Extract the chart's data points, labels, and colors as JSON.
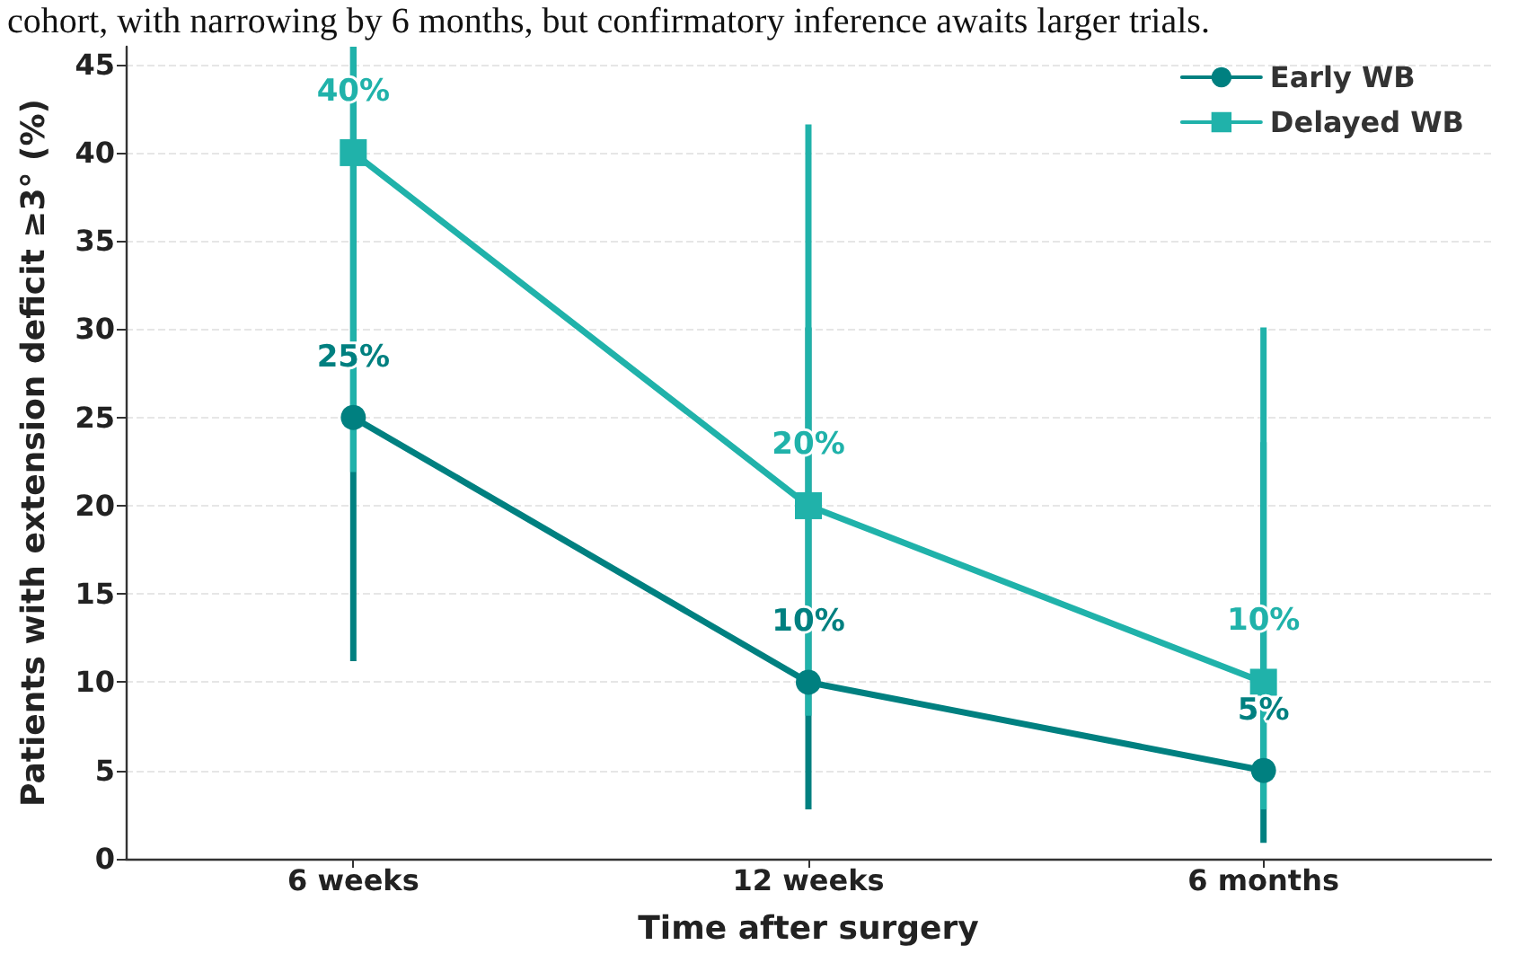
{
  "chart_data": {
    "type": "line",
    "annotations": [
      "cohort, with narrowing by 6 months, but confirmatory inference awaits larger trials."
    ],
    "xlabel": "Time after surgery",
    "ylabel": "Patients with extension deficit ≥3° (%)",
    "categories": [
      "6 weeks",
      "12 weeks",
      "6 months"
    ],
    "series": [
      {
        "name": "Early WB",
        "color": "#008080",
        "marker": "circle",
        "values": [
          25,
          10,
          5
        ],
        "errors": [
          [
            11.2,
            46
          ],
          [
            2.8,
            30.1
          ],
          [
            0.9,
            23.6
          ]
        ],
        "value_labels": [
          "25%",
          "10%",
          "5%"
        ]
      },
      {
        "name": "Delayed WB",
        "color": "#20b2aa",
        "marker": "square",
        "values": [
          40,
          20,
          10
        ],
        "errors": [
          [
            21.9,
            46
          ],
          [
            8.1,
            41.6
          ],
          [
            2.8,
            30.1
          ]
        ],
        "value_labels": [
          "40%",
          "20%",
          "10%"
        ]
      }
    ],
    "ylim": [
      0,
      46
    ],
    "yticks": [
      0,
      5,
      10,
      15,
      20,
      25,
      30,
      35,
      40,
      45
    ],
    "grid": true,
    "legend": "top right",
    "line_style": "solid"
  }
}
